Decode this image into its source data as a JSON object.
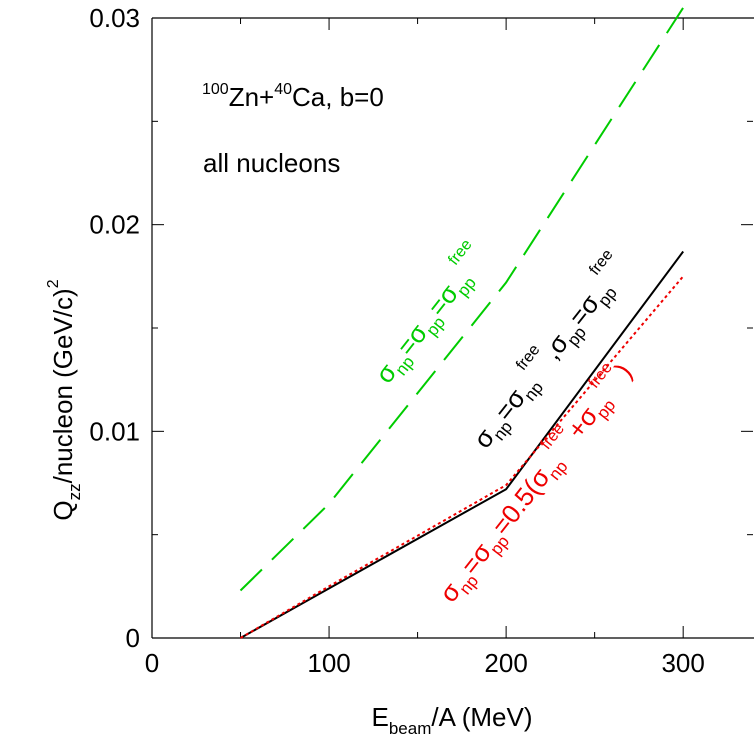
{
  "chart_data": {
    "type": "line",
    "xlabel": {
      "main": "E",
      "sub": "beam",
      "rest": "/A (MeV)"
    },
    "ylabel": {
      "main": "Q",
      "sub": "zz",
      "rest": "/nucleon (GeV/c)",
      "sup": "2"
    },
    "xlim": [
      0,
      340
    ],
    "ylim": [
      0,
      0.03
    ],
    "x_ticks": [
      0,
      100,
      200,
      300
    ],
    "x_tick_labels": [
      "0",
      "100",
      "200",
      "300"
    ],
    "y_ticks": [
      0,
      0.01,
      0.02,
      0.03
    ],
    "y_tick_labels": [
      "0",
      "0.01",
      "0.02",
      "0.03"
    ],
    "grid": false,
    "annotations": {
      "system": {
        "sup1": "100",
        "t1": "Zn+",
        "sup2": "40",
        "t2": "Ca, b=0"
      },
      "subset": "all nucleons"
    },
    "series": [
      {
        "key": "green",
        "color": "#00cc00",
        "style": "long-dash",
        "label": {
          "sigma1": "σ",
          "sub1": "np",
          "eq1": "=σ",
          "sub2": "pp",
          "eq2": "=σ",
          "sub3": "pp",
          "sup3": "free"
        },
        "x": [
          50,
          100,
          200,
          300
        ],
        "y": [
          0.0023,
          0.0065,
          0.0172,
          0.0305
        ]
      },
      {
        "key": "black",
        "color": "#000000",
        "style": "solid",
        "label": {
          "sigma1": "σ",
          "sub1": "np",
          "eq1": "=σ",
          "sub2": "np",
          "sup2": "free",
          "sep": ",σ",
          "sub3": "pp",
          "eq3": "=σ",
          "sub4": "pp",
          "sup4": "free"
        },
        "x": [
          50,
          100,
          200,
          300
        ],
        "y": [
          0.0,
          0.0024,
          0.0072,
          0.0187
        ]
      },
      {
        "key": "red",
        "color": "#ee0000",
        "style": "dotted",
        "label": {
          "sigma1": "σ",
          "sub1": "np",
          "eq1": "=σ",
          "sub2": "pp",
          "eq2": "=0.5(σ",
          "sub3": "np",
          "sup3": "free",
          "plus": "+σ",
          "sub4": "pp",
          "sup4": "free",
          "close": ")"
        },
        "x": [
          50,
          100,
          200,
          300
        ],
        "y": [
          0.0,
          0.0025,
          0.0074,
          0.0175
        ]
      }
    ]
  }
}
